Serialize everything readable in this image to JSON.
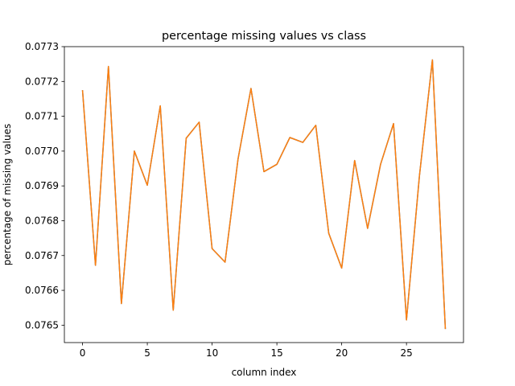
{
  "chart_data": {
    "type": "line",
    "title": "percentage missing values vs class",
    "xlabel": "column index",
    "ylabel": "percentage of missing values",
    "xlim": [
      -1.4,
      29.4
    ],
    "ylim": [
      0.07645,
      0.0773
    ],
    "xticks": [
      0,
      5,
      10,
      15,
      20,
      25
    ],
    "yticks": [
      0.0765,
      0.0766,
      0.0767,
      0.0768,
      0.0769,
      0.077,
      0.0771,
      0.0772,
      0.0773
    ],
    "ytick_labels": [
      "0.0765",
      "0.0766",
      "0.0767",
      "0.0768",
      "0.0769",
      "0.0770",
      "0.0771",
      "0.0772",
      "0.0773"
    ],
    "grid": false,
    "series": [
      {
        "color": "#1f77b4",
        "x": [
          0,
          1,
          2,
          3,
          4,
          5,
          6,
          7,
          8,
          9,
          10,
          11,
          12,
          13,
          14,
          15,
          16,
          17,
          18,
          19,
          20,
          21,
          22,
          23,
          24,
          25,
          26,
          27,
          28
        ],
        "values": [
          0.077175,
          0.076672,
          0.077243,
          0.076562,
          0.077,
          0.076902,
          0.07713,
          0.076543,
          0.077037,
          0.077083,
          0.07672,
          0.076681,
          0.076977,
          0.07718,
          0.076941,
          0.076962,
          0.077039,
          0.077025,
          0.077074,
          0.076764,
          0.076664,
          0.076973,
          0.076778,
          0.076962,
          0.077079,
          0.076515,
          0.076929,
          0.077262,
          0.076489
        ]
      },
      {
        "color": "#ff7f0e",
        "x": [
          0,
          1,
          2,
          3,
          4,
          5,
          6,
          7,
          8,
          9,
          10,
          11,
          12,
          13,
          14,
          15,
          16,
          17,
          18,
          19,
          20,
          21,
          22,
          23,
          24,
          25,
          26,
          27,
          28
        ],
        "values": [
          0.077175,
          0.076672,
          0.077243,
          0.076562,
          0.077,
          0.076902,
          0.07713,
          0.076543,
          0.077037,
          0.077083,
          0.07672,
          0.076681,
          0.076977,
          0.07718,
          0.076941,
          0.076962,
          0.077039,
          0.077025,
          0.077074,
          0.076764,
          0.076664,
          0.076973,
          0.076778,
          0.076962,
          0.077079,
          0.076515,
          0.076929,
          0.077262,
          0.076489
        ]
      }
    ]
  }
}
